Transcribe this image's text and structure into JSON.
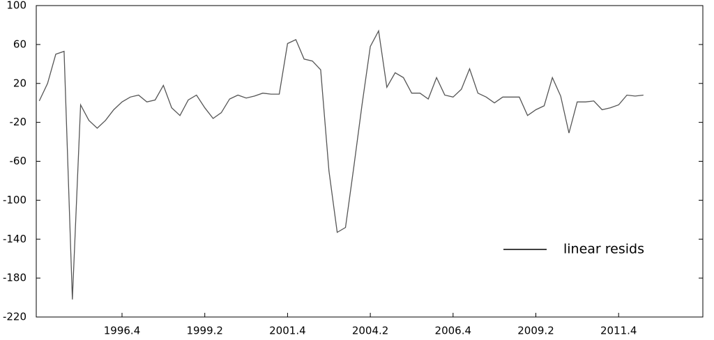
{
  "chart_data": {
    "type": "line",
    "categories": [
      null,
      null,
      null,
      null,
      null,
      null,
      null,
      null,
      null,
      null,
      "1996.4",
      null,
      null,
      null,
      null,
      null,
      null,
      null,
      null,
      null,
      "1999.2",
      null,
      null,
      null,
      null,
      null,
      null,
      null,
      null,
      null,
      "2001.4",
      null,
      null,
      null,
      null,
      null,
      null,
      null,
      null,
      null,
      "2004.2",
      null,
      null,
      null,
      null,
      null,
      null,
      null,
      null,
      null,
      "2006.4",
      null,
      null,
      null,
      null,
      null,
      null,
      null,
      null,
      null,
      "2009.2",
      null,
      null,
      null,
      null,
      null,
      null,
      null,
      null,
      null,
      "2011.4",
      null,
      null,
      null,
      null,
      null,
      null,
      null,
      null,
      null
    ],
    "series": [
      {
        "name": "linear resids",
        "color": "#555555",
        "values": [
          2,
          20,
          50,
          53,
          -202,
          -2,
          -18,
          -26,
          -18,
          -7,
          1,
          6,
          8,
          1,
          3,
          18,
          -5,
          -13,
          3,
          8,
          -5,
          -16,
          -10,
          4,
          8,
          5,
          7,
          10,
          9,
          9,
          61,
          65,
          45,
          43,
          34,
          -70,
          -133,
          -128,
          -66,
          -2,
          58,
          74,
          16,
          31,
          26,
          10,
          10,
          4,
          26,
          8,
          6,
          14,
          35,
          10,
          6,
          0,
          6,
          6,
          6,
          -13,
          -7,
          -3,
          26,
          7,
          -31,
          1,
          1,
          2,
          -7,
          -5,
          -2,
          8,
          7,
          8,
          null,
          null,
          null,
          null,
          null,
          null
        ]
      }
    ],
    "ylim": [
      -220,
      100
    ],
    "yticks": [
      -220,
      -180,
      -140,
      -100,
      -60,
      -20,
      20,
      60,
      100
    ],
    "legend": "lower-right"
  }
}
